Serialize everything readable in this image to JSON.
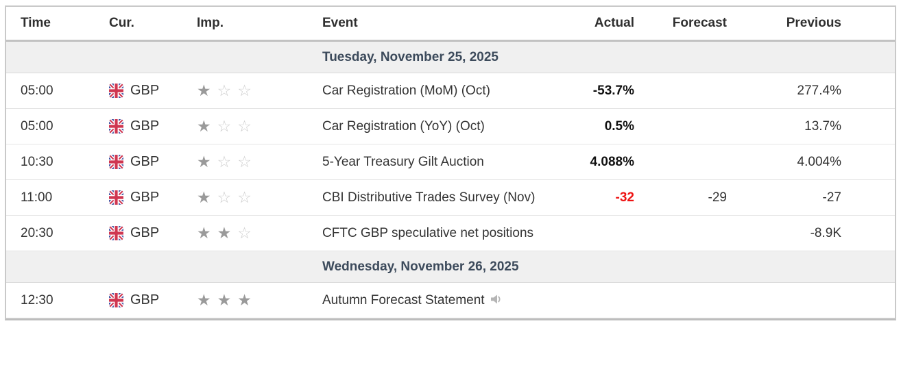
{
  "columns": {
    "time": "Time",
    "cur": "Cur.",
    "imp": "Imp.",
    "event": "Event",
    "actual": "Actual",
    "forecast": "Forecast",
    "previous": "Previous"
  },
  "colors": {
    "actual_red": "#ee1313",
    "actual_black": "#111111",
    "date_text": "#3c4a5b",
    "date_row_bg": "#f0f0f0",
    "star_filled": "#9a9a9a",
    "star_empty": "#cdcdcd"
  },
  "importance_max_stars": 3,
  "rows": [
    {
      "type": "date",
      "label": "Tuesday, November 25, 2025"
    },
    {
      "type": "event",
      "time": "05:00",
      "currency": "GBP",
      "flag": "uk-flag",
      "importance": 1,
      "event": "Car Registration (MoM) (Oct)",
      "actual": "-53.7%",
      "forecast": "",
      "previous": "277.4%",
      "actual_style": "bold",
      "has_speech_icon": false
    },
    {
      "type": "event",
      "time": "05:00",
      "currency": "GBP",
      "flag": "uk-flag",
      "importance": 1,
      "event": "Car Registration (YoY) (Oct)",
      "actual": "0.5%",
      "forecast": "",
      "previous": "13.7%",
      "actual_style": "bold",
      "has_speech_icon": false
    },
    {
      "type": "event",
      "time": "10:30",
      "currency": "GBP",
      "flag": "uk-flag",
      "importance": 1,
      "event": "5-Year Treasury Gilt Auction",
      "actual": "4.088%",
      "forecast": "",
      "previous": "4.004%",
      "actual_style": "bold",
      "has_speech_icon": false
    },
    {
      "type": "event",
      "time": "11:00",
      "currency": "GBP",
      "flag": "uk-flag",
      "importance": 1,
      "event": "CBI Distributive Trades Survey (Nov)",
      "actual": "-32",
      "forecast": "-29",
      "previous": "-27",
      "actual_style": "bold-red",
      "has_speech_icon": false
    },
    {
      "type": "event",
      "time": "20:30",
      "currency": "GBP",
      "flag": "uk-flag",
      "importance": 2,
      "event": "CFTC GBP speculative net positions",
      "actual": "",
      "forecast": "",
      "previous": "-8.9K",
      "actual_style": "bold",
      "has_speech_icon": false
    },
    {
      "type": "date",
      "label": "Wednesday, November 26, 2025"
    },
    {
      "type": "event",
      "time": "12:30",
      "currency": "GBP",
      "flag": "uk-flag",
      "importance": 3,
      "event": "Autumn Forecast Statement",
      "actual": "",
      "forecast": "",
      "previous": "",
      "actual_style": "bold",
      "has_speech_icon": true
    }
  ]
}
